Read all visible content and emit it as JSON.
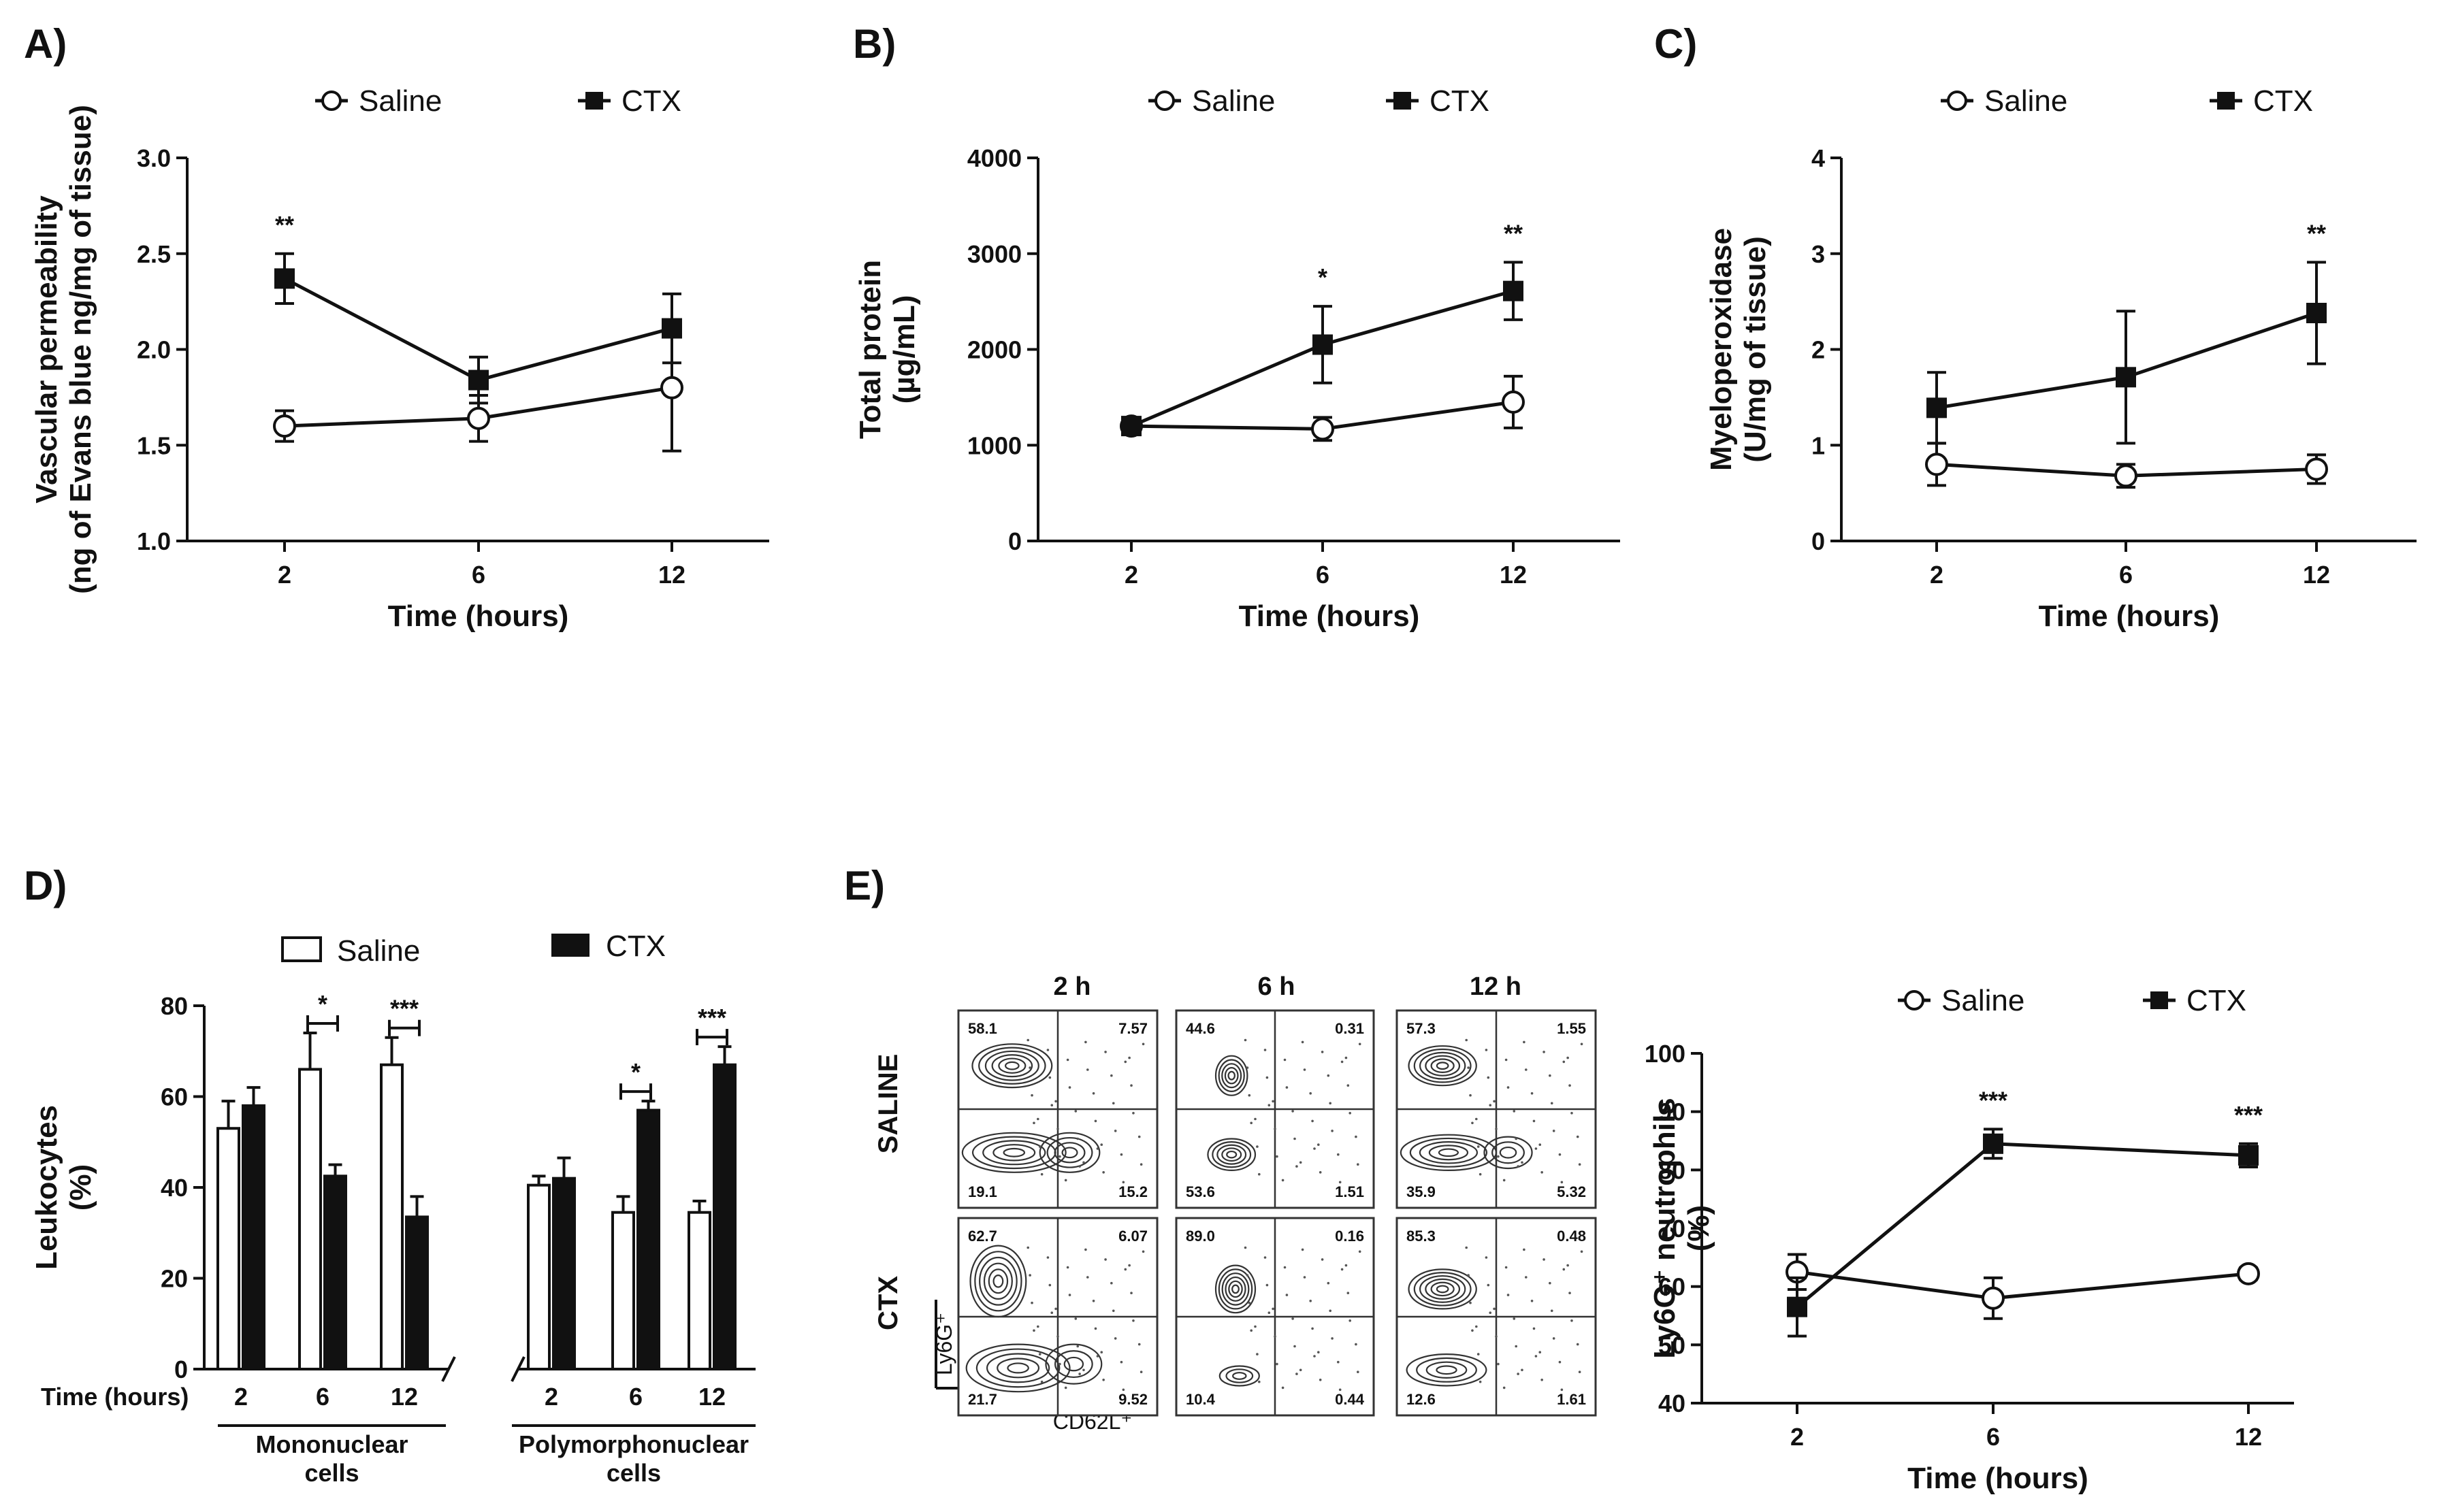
{
  "panel_labels": [
    "A)",
    "B)",
    "C)",
    "D)",
    "E)"
  ],
  "legend": {
    "saline": "Saline",
    "ctx": "CTX"
  },
  "chart_data": [
    {
      "id": "A",
      "type": "line",
      "title": "",
      "xlabel": "Time (hours)",
      "ylabel": [
        "Vascular permeability",
        "(ng of Evans blue ng/mg of tissue)"
      ],
      "categories": [
        "2",
        "6",
        "12"
      ],
      "ylim": [
        1.0,
        3.0
      ],
      "yticks": [
        "1.0",
        "1.5",
        "2.0",
        "2.5",
        "3.0"
      ],
      "series": [
        {
          "name": "Saline",
          "values": [
            1.6,
            1.64,
            1.8
          ],
          "errors": [
            0.08,
            0.12,
            0.33
          ]
        },
        {
          "name": "CTX",
          "values": [
            2.37,
            1.84,
            2.11
          ],
          "errors": [
            0.13,
            0.12,
            0.18
          ]
        }
      ],
      "annotations": [
        {
          "category": "2",
          "text": "**"
        }
      ]
    },
    {
      "id": "B",
      "type": "line",
      "title": "",
      "xlabel": "Time (hours)",
      "ylabel": [
        "Total protein",
        "(µg/mL)"
      ],
      "categories": [
        "2",
        "6",
        "12"
      ],
      "ylim": [
        0,
        4000
      ],
      "yticks": [
        "0",
        "1000",
        "2000",
        "3000",
        "4000"
      ],
      "series": [
        {
          "name": "Saline",
          "values": [
            1200,
            1170,
            1450
          ],
          "errors": [
            60,
            120,
            270
          ]
        },
        {
          "name": "CTX",
          "values": [
            1200,
            2050,
            2610
          ],
          "errors": [
            60,
            400,
            300
          ]
        }
      ],
      "annotations": [
        {
          "category": "6",
          "text": "*"
        },
        {
          "category": "12",
          "text": "**"
        }
      ]
    },
    {
      "id": "C",
      "type": "line",
      "title": "",
      "xlabel": "Time (hours)",
      "ylabel": [
        "Myeloperoxidase",
        "(U/mg of tissue)"
      ],
      "categories": [
        "2",
        "6",
        "12"
      ],
      "ylim": [
        0,
        4
      ],
      "yticks": [
        "0",
        "1",
        "2",
        "3",
        "4"
      ],
      "series": [
        {
          "name": "Saline",
          "values": [
            0.8,
            0.68,
            0.75
          ],
          "errors": [
            0.22,
            0.12,
            0.15
          ]
        },
        {
          "name": "CTX",
          "values": [
            1.39,
            1.71,
            2.38
          ],
          "errors": [
            0.37,
            0.69,
            0.53
          ]
        }
      ],
      "annotations": [
        {
          "category": "12",
          "text": "**"
        }
      ]
    },
    {
      "id": "D",
      "type": "bar",
      "title": "",
      "xlabel": "Time (hours)",
      "ylabel": [
        "Leukocytes",
        "(%)"
      ],
      "groups": [
        "Mononuclear cells",
        "Polymorphonuclear cells"
      ],
      "group_labels": [
        [
          "Mononuclear",
          "cells"
        ],
        [
          "Polymorphonuclear",
          "cells"
        ]
      ],
      "categories": [
        "2",
        "6",
        "12"
      ],
      "ylim": [
        0,
        80
      ],
      "yticks": [
        "0",
        "20",
        "40",
        "60",
        "80"
      ],
      "series": [
        {
          "name": "Saline",
          "values": [
            [
              53,
              66,
              67
            ],
            [
              40.5,
              34.5,
              34.5
            ]
          ],
          "errors": [
            [
              6,
              8,
              6
            ],
            [
              2,
              3.5,
              2.5
            ]
          ]
        },
        {
          "name": "CTX",
          "values": [
            [
              58,
              42.5,
              33.5
            ],
            [
              42,
              57,
              67
            ]
          ],
          "errors": [
            [
              4,
              2.5,
              4.5
            ],
            [
              4.5,
              2,
              4
            ]
          ]
        }
      ],
      "annotations": [
        {
          "group": 0,
          "category": "6",
          "text": "*"
        },
        {
          "group": 0,
          "category": "12",
          "text": "***"
        },
        {
          "group": 1,
          "category": "6",
          "text": "*"
        },
        {
          "group": 1,
          "category": "12",
          "text": "***"
        }
      ]
    },
    {
      "id": "E-right",
      "type": "line",
      "title": "",
      "xlabel": "Time (hours)",
      "ylabel": [
        "Ly6G⁺ neutrophils",
        "(%)"
      ],
      "categories": [
        "2",
        "6",
        "12"
      ],
      "ylim": [
        40,
        100
      ],
      "yticks": [
        "40",
        "50",
        "60",
        "70",
        "80",
        "90",
        "100"
      ],
      "series": [
        {
          "name": "Saline",
          "values": [
            62.5,
            58,
            62.2
          ],
          "errors": [
            3,
            3.5,
            1
          ]
        },
        {
          "name": "CTX",
          "values": [
            56.5,
            84.5,
            82.5
          ],
          "errors": [
            5,
            2.5,
            2
          ]
        }
      ],
      "annotations": [
        {
          "category": "6",
          "text": "***"
        },
        {
          "category": "12",
          "text": "***"
        }
      ]
    }
  ],
  "flow": {
    "columns": [
      "2 h",
      "6 h",
      "12 h"
    ],
    "rows": [
      "SALINE",
      "CTX"
    ],
    "y_axis_label": "Ly6G⁺",
    "x_axis_label": "CD62L⁺",
    "quadrants": [
      [
        [
          "58.1",
          "7.57",
          "19.1",
          "15.2"
        ],
        [
          "44.6",
          "0.31",
          "53.6",
          "1.51"
        ],
        [
          "57.3",
          "1.55",
          "35.9",
          "5.32"
        ]
      ],
      [
        [
          "62.7",
          "6.07",
          "21.7",
          "9.52"
        ],
        [
          "89.0",
          "0.16",
          "10.4",
          "0.44"
        ],
        [
          "85.3",
          "0.48",
          "12.6",
          "1.61"
        ]
      ]
    ]
  }
}
